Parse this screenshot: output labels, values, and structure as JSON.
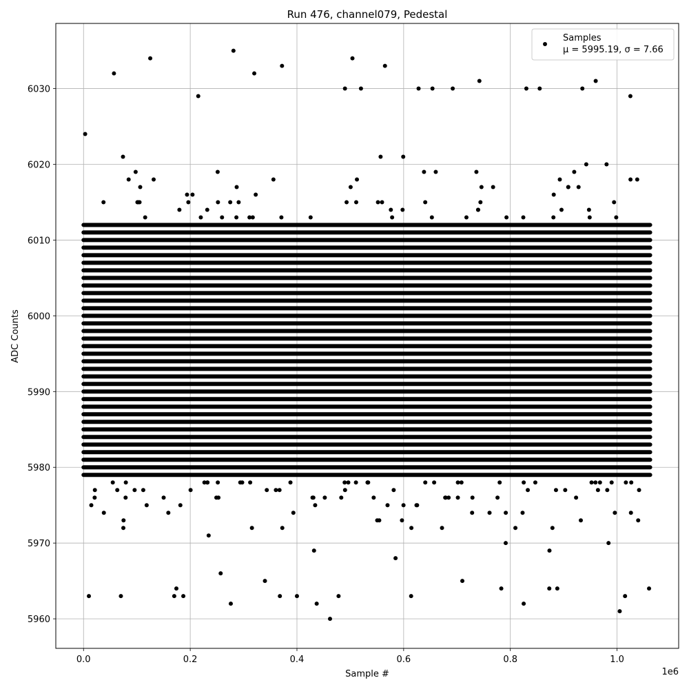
{
  "chart_data": {
    "type": "scatter",
    "title": "Run 476, channel079, Pedestal",
    "xlabel": "Sample #",
    "ylabel": "ADC Counts",
    "x_offset_label": "1e6",
    "xlim": [
      -0.052,
      1.1155
    ],
    "ylim": [
      5956.1,
      6038.6
    ],
    "xticks": [
      0.0,
      0.2,
      0.4,
      0.6,
      0.8,
      1.0
    ],
    "xtick_labels": [
      "0.0",
      "0.2",
      "0.4",
      "0.6",
      "0.8",
      "1.0"
    ],
    "yticks": [
      5960,
      5970,
      5980,
      5990,
      6000,
      6010,
      6020,
      6030
    ],
    "ytick_labels": [
      "5960",
      "5970",
      "5980",
      "5990",
      "6000",
      "6010",
      "6020",
      "6030"
    ],
    "grid": true,
    "legend_position": "top-right",
    "marker_color": "#000000",
    "series": [
      {
        "name": "Samples",
        "stats": "μ = 5995.19, σ = 7.66",
        "mean": 5995.19,
        "sigma": 7.66,
        "x_range": [
          0.0,
          1.062
        ],
        "dense_band": {
          "y_min": 5979,
          "y_max": 6012,
          "y_step": 1
        },
        "points": [
          {
            "x": 0.003,
            "y": 6024
          },
          {
            "x": 0.01,
            "y": 5963
          },
          {
            "x": 0.057,
            "y": 6032
          },
          {
            "x": 0.07,
            "y": 5963
          },
          {
            "x": 0.125,
            "y": 6034
          },
          {
            "x": 0.17,
            "y": 5963
          },
          {
            "x": 0.174,
            "y": 5964
          },
          {
            "x": 0.187,
            "y": 5963
          },
          {
            "x": 0.215,
            "y": 6029
          },
          {
            "x": 0.257,
            "y": 5966
          },
          {
            "x": 0.276,
            "y": 5962
          },
          {
            "x": 0.281,
            "y": 6035
          },
          {
            "x": 0.32,
            "y": 6032
          },
          {
            "x": 0.34,
            "y": 5965
          },
          {
            "x": 0.368,
            "y": 5963
          },
          {
            "x": 0.372,
            "y": 6033
          },
          {
            "x": 0.4,
            "y": 5963
          },
          {
            "x": 0.437,
            "y": 5962
          },
          {
            "x": 0.462,
            "y": 5960
          },
          {
            "x": 0.478,
            "y": 5963
          },
          {
            "x": 0.49,
            "y": 6030
          },
          {
            "x": 0.504,
            "y": 6034
          },
          {
            "x": 0.52,
            "y": 6030
          },
          {
            "x": 0.565,
            "y": 6033
          },
          {
            "x": 0.614,
            "y": 5963
          },
          {
            "x": 0.628,
            "y": 6030
          },
          {
            "x": 0.654,
            "y": 6030
          },
          {
            "x": 0.692,
            "y": 6030
          },
          {
            "x": 0.71,
            "y": 5965
          },
          {
            "x": 0.742,
            "y": 6031
          },
          {
            "x": 0.783,
            "y": 5964
          },
          {
            "x": 0.825,
            "y": 5962
          },
          {
            "x": 0.83,
            "y": 6030
          },
          {
            "x": 0.855,
            "y": 6030
          },
          {
            "x": 0.873,
            "y": 5964
          },
          {
            "x": 0.888,
            "y": 5964
          },
          {
            "x": 0.935,
            "y": 6030
          },
          {
            "x": 0.96,
            "y": 6031
          },
          {
            "x": 1.005,
            "y": 5961
          },
          {
            "x": 1.015,
            "y": 5963
          },
          {
            "x": 1.025,
            "y": 6029
          },
          {
            "x": 1.06,
            "y": 5964
          }
        ]
      }
    ]
  }
}
